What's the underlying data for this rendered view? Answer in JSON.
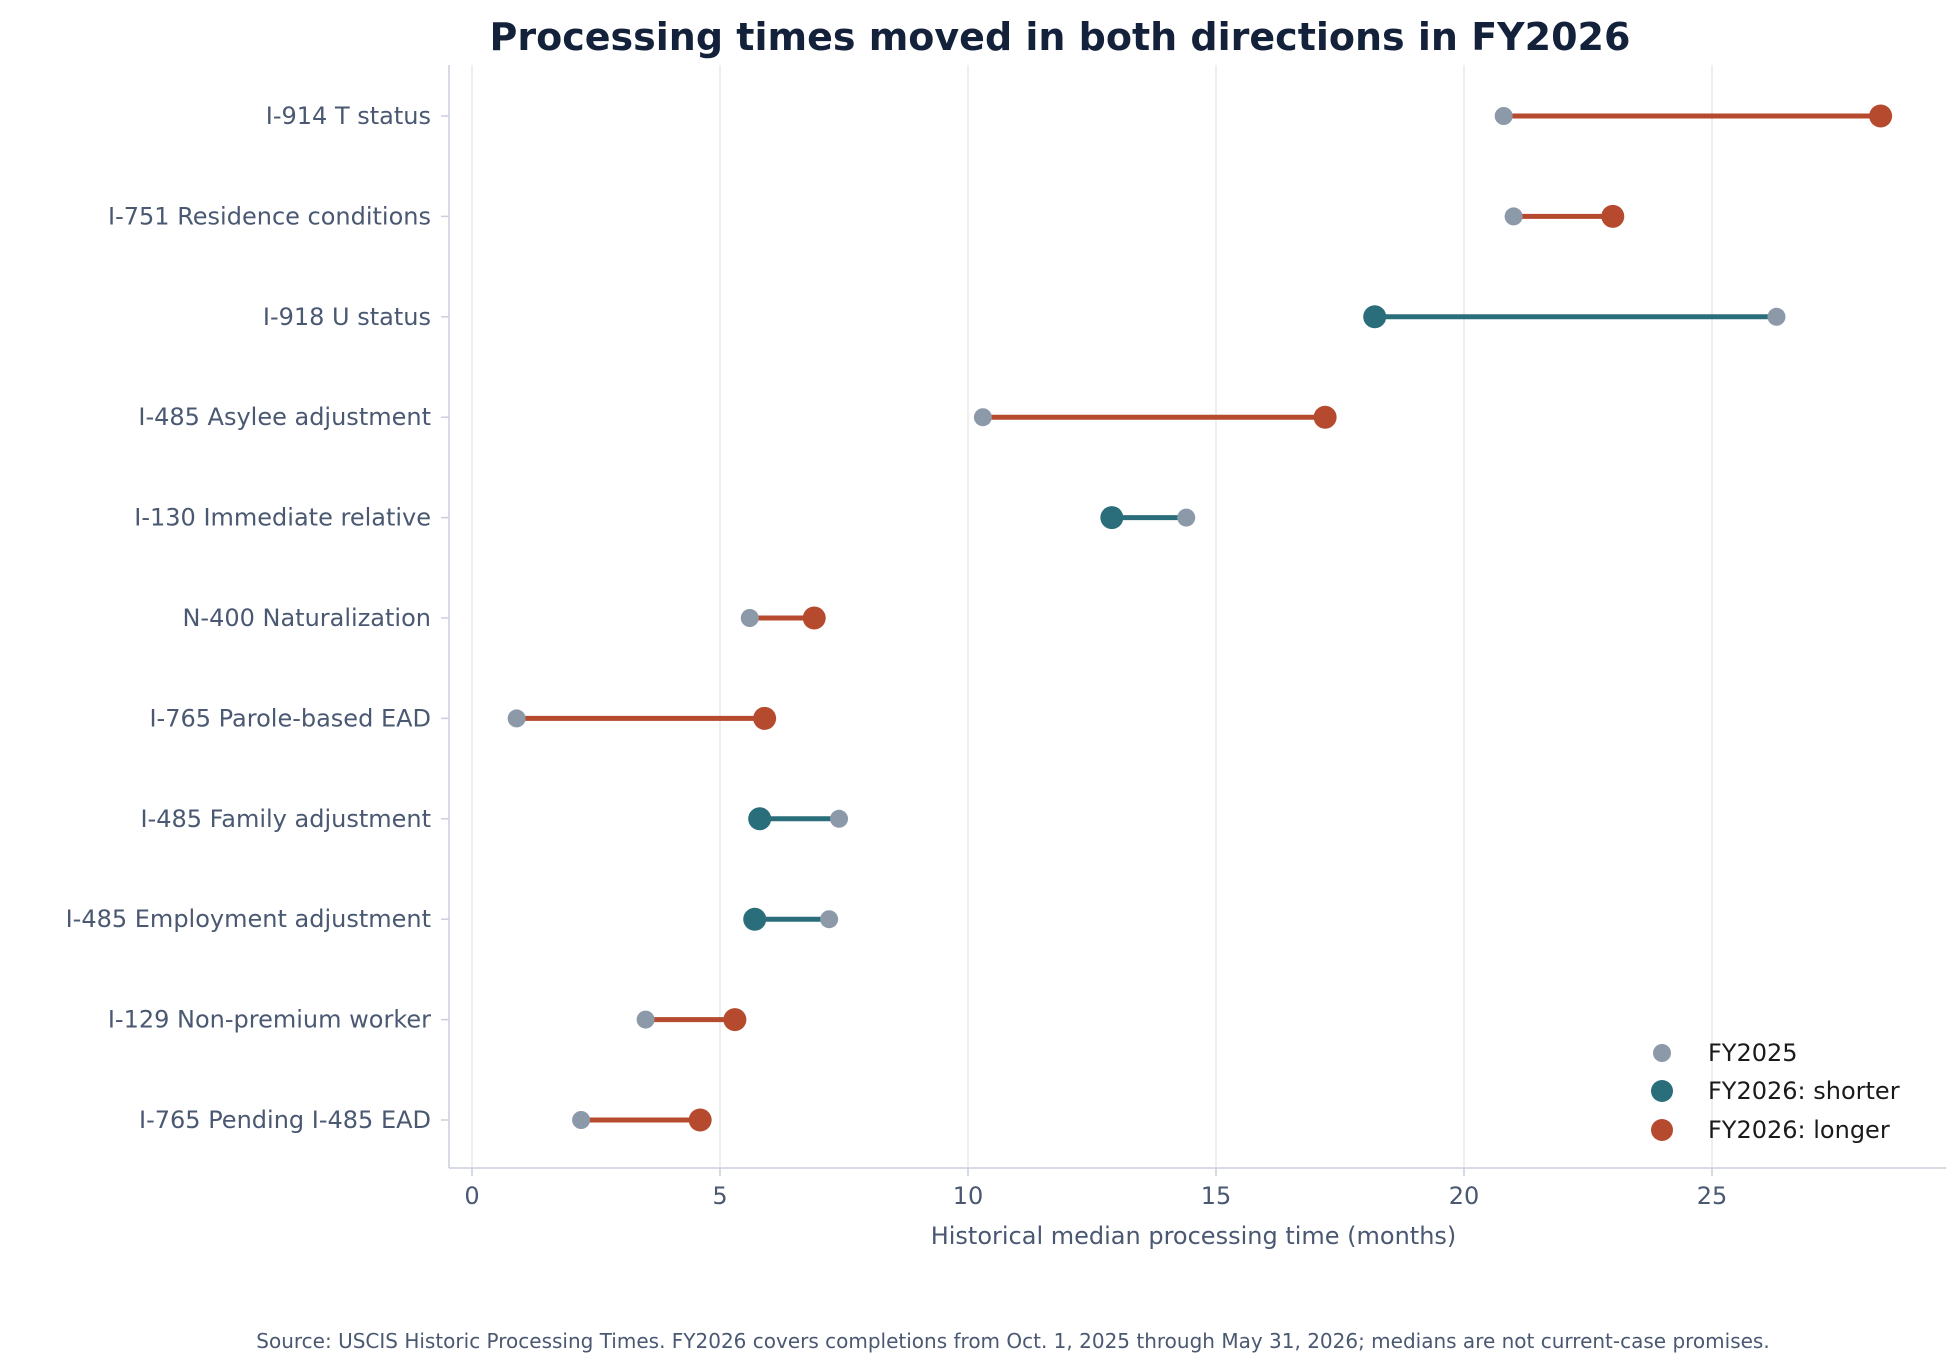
{
  "chart_data": {
    "type": "dumbbell",
    "title": "Processing times moved in both directions in FY2026",
    "xlabel": "Historical median processing time (months)",
    "ylabel": "",
    "xlim": [
      -0.45,
      29.75
    ],
    "xticks": [
      0,
      5,
      10,
      15,
      20,
      25
    ],
    "grid": "vertical",
    "legend_position": "bottom-right",
    "series": [
      {
        "name": "FY2025"
      },
      {
        "name": "FY2026: shorter"
      },
      {
        "name": "FY2026: longer"
      }
    ],
    "rows": [
      {
        "label": "I-914  T status",
        "fy2025": 20.8,
        "fy2026": 28.4
      },
      {
        "label": "I-751  Residence conditions",
        "fy2025": 21.0,
        "fy2026": 23.0
      },
      {
        "label": "I-918  U status",
        "fy2025": 26.3,
        "fy2026": 18.2
      },
      {
        "label": "I-485  Asylee adjustment",
        "fy2025": 10.3,
        "fy2026": 17.2
      },
      {
        "label": "I-130  Immediate relative",
        "fy2025": 14.4,
        "fy2026": 12.9
      },
      {
        "label": "N-400  Naturalization",
        "fy2025": 5.6,
        "fy2026": 6.9
      },
      {
        "label": "I-765  Parole-based EAD",
        "fy2025": 0.9,
        "fy2026": 5.9
      },
      {
        "label": "I-485  Family adjustment",
        "fy2025": 7.4,
        "fy2026": 5.8
      },
      {
        "label": "I-485  Employment adjustment",
        "fy2025": 7.2,
        "fy2026": 5.7
      },
      {
        "label": "I-129  Non-premium worker",
        "fy2025": 3.5,
        "fy2026": 5.3
      },
      {
        "label": "I-765  Pending I-485 EAD",
        "fy2025": 2.2,
        "fy2026": 4.6
      }
    ],
    "source_note": "Source: USCIS Historic Processing Times. FY2026 covers completions from Oct. 1, 2025 through May 31, 2026; medians are not current-case promises."
  },
  "colors": {
    "fy2025": "#8c99a8",
    "shorter": "#2b6e7b",
    "longer": "#b54a2e",
    "grid": "#e8e8e8",
    "axis": "#c9cfdc",
    "title": "#14213a",
    "label": "#4a5872"
  }
}
